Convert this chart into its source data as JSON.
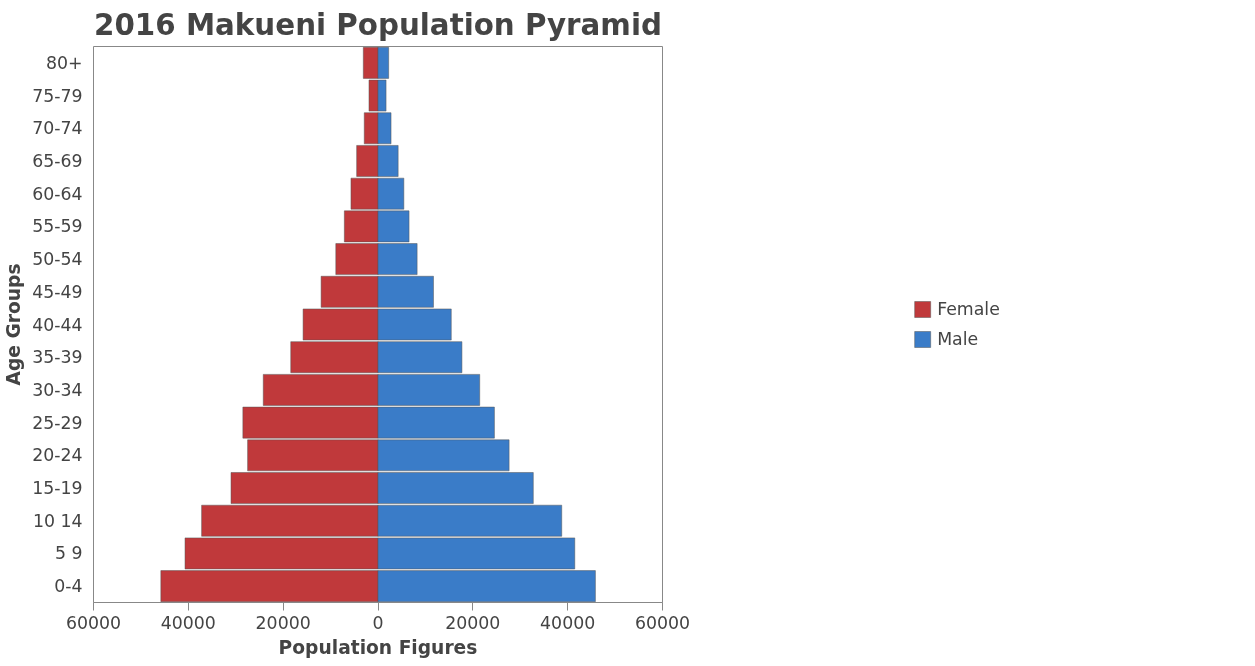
{
  "chart_data": {
    "type": "bar",
    "title": "2016 Makueni Population Pyramid",
    "xlabel": "Population Figures",
    "ylabel": "Age Groups",
    "orientation": "horizontal",
    "stacked": true,
    "categories": [
      "80+",
      "75-79",
      "70-74",
      "65-69",
      "60-64",
      "55-59",
      "50-54",
      "45-49",
      "40-44",
      "35-39",
      "30-34",
      "25-29",
      "20-24",
      "15-19",
      "10 14",
      "5 9",
      "0-4"
    ],
    "series": [
      {
        "name": "Female",
        "color": "#c0393b",
        "values": [
          -3100,
          -1900,
          -2900,
          -4500,
          -5700,
          -7100,
          -8900,
          -12000,
          -15800,
          -18400,
          -24200,
          -28500,
          -27500,
          -31000,
          -37200,
          -40700,
          -45800
        ]
      },
      {
        "name": "Male",
        "color": "#3a7cc8",
        "values": [
          2250,
          1700,
          2750,
          4250,
          5450,
          6550,
          8250,
          11700,
          15450,
          17700,
          21450,
          24550,
          27650,
          32750,
          38750,
          41500,
          45850
        ]
      }
    ],
    "xlim": [
      -60000,
      60000
    ],
    "xticks": [
      {
        "value": -60000,
        "label": "60000"
      },
      {
        "value": -40000,
        "label": "40000"
      },
      {
        "value": -20000,
        "label": "20000"
      },
      0,
      20000,
      40000,
      60000
    ],
    "grid": false,
    "legend": "right"
  }
}
